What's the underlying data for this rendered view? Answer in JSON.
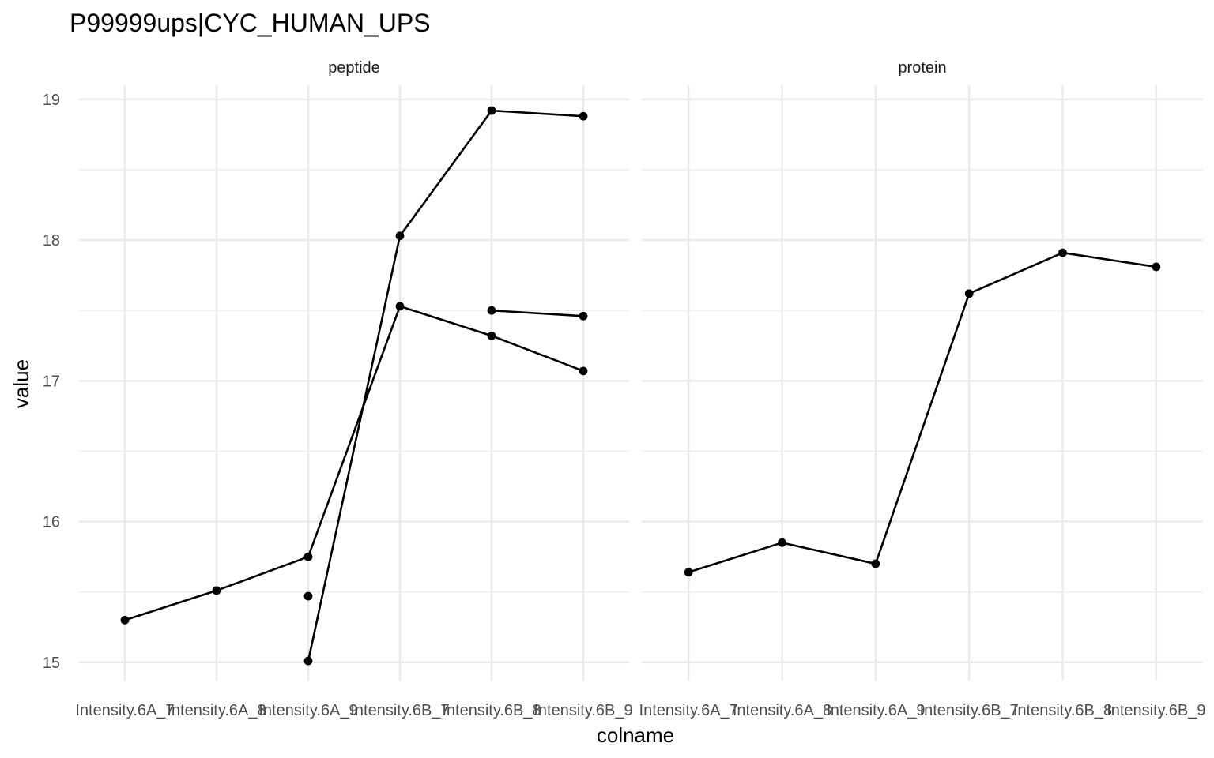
{
  "chart_data": {
    "type": "line",
    "title": "P99999ups|CYC_HUMAN_UPS",
    "xlabel": "colname",
    "ylabel": "value",
    "categories": [
      "Intensity.6A_7",
      "Intensity.6A_8",
      "Intensity.6A_9",
      "Intensity.6B_7",
      "Intensity.6B_8",
      "Intensity.6B_9"
    ],
    "ylim": [
      14.87,
      19.1
    ],
    "yticks": [
      15,
      16,
      17,
      18,
      19
    ],
    "grid": true,
    "facets": [
      {
        "label": "peptide",
        "series": [
          {
            "values": [
              15.3,
              15.51,
              15.75,
              17.53,
              17.32,
              17.07
            ]
          },
          {
            "values": [
              null,
              null,
              15.47,
              null,
              null,
              null
            ]
          },
          {
            "values": [
              null,
              null,
              15.01,
              18.03,
              18.92,
              18.88
            ]
          },
          {
            "values": [
              null,
              null,
              null,
              null,
              17.5,
              17.46
            ]
          }
        ]
      },
      {
        "label": "protein",
        "series": [
          {
            "values": [
              15.64,
              15.85,
              15.7,
              17.62,
              17.91,
              17.81
            ]
          }
        ]
      }
    ]
  }
}
